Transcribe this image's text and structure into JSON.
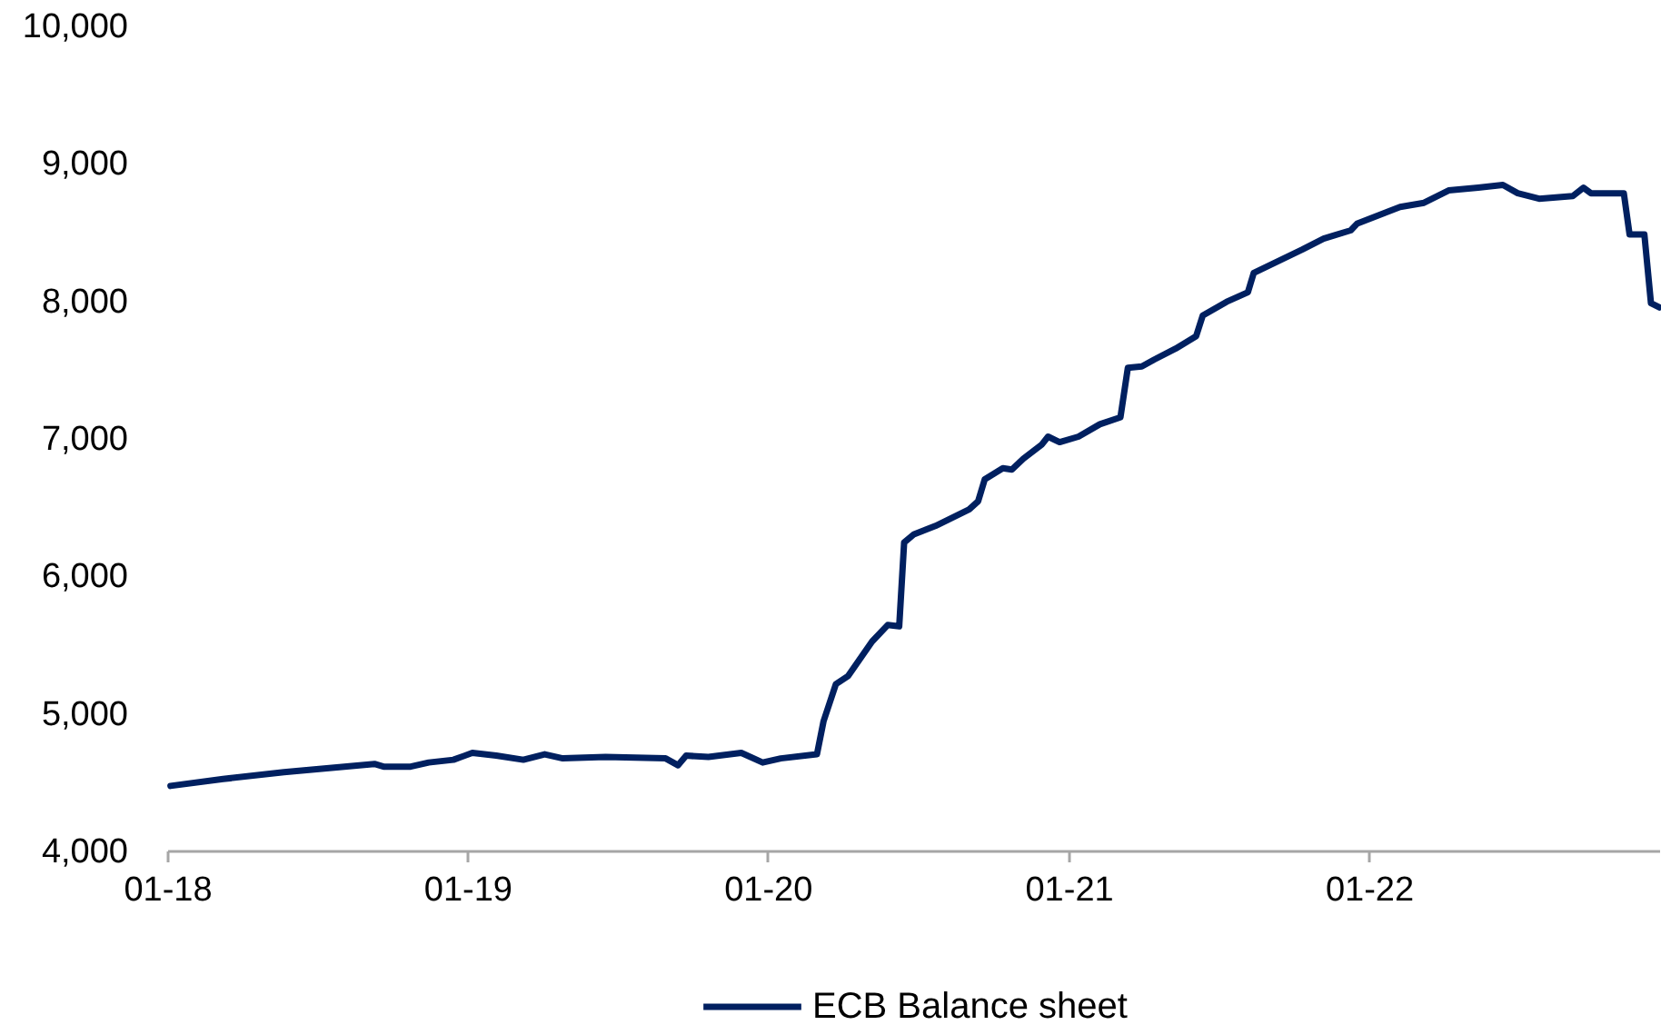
{
  "chart_data": {
    "type": "line",
    "x": [
      "2018-01-05",
      "2018-03-10",
      "2018-05-23",
      "2018-09-10",
      "2018-09-21",
      "2018-10-24",
      "2018-11-15",
      "2018-12-15",
      "2019-01-07",
      "2019-02-05",
      "2019-03-10",
      "2019-04-05",
      "2019-04-27",
      "2019-06-18",
      "2019-08-30",
      "2019-09-14",
      "2019-09-24",
      "2019-10-21",
      "2019-11-30",
      "2019-12-26",
      "2020-01-17",
      "2020-03-01",
      "2020-03-09",
      "2020-03-24",
      "2020-04-08",
      "2020-05-07",
      "2020-05-26",
      "2020-06-09",
      "2020-06-15",
      "2020-06-27",
      "2020-07-23",
      "2020-09-02",
      "2020-09-13",
      "2020-09-21",
      "2020-10-13",
      "2020-10-24",
      "2020-11-07",
      "2020-11-29",
      "2020-12-07",
      "2020-12-21",
      "2021-01-13",
      "2021-02-08",
      "2021-03-05",
      "2021-03-14",
      "2021-03-31",
      "2021-04-15",
      "2021-05-11",
      "2021-06-05",
      "2021-06-13",
      "2021-07-12",
      "2021-08-07",
      "2021-08-14",
      "2021-10-12",
      "2021-11-07",
      "2021-12-10",
      "2021-12-18",
      "2022-02-08",
      "2022-03-09",
      "2022-04-08",
      "2022-05-14",
      "2022-06-13",
      "2022-07-01",
      "2022-07-27",
      "2022-09-06",
      "2022-09-19",
      "2022-09-28",
      "2022-11-07",
      "2022-11-14",
      "2022-12-02",
      "2022-12-10",
      "2022-12-20"
    ],
    "series": [
      {
        "name": "ECB Balance sheet",
        "color": "#002060",
        "values": [
          4470,
          4520,
          4570,
          4630,
          4610,
          4610,
          4640,
          4660,
          4710,
          4690,
          4660,
          4700,
          4670,
          4680,
          4670,
          4620,
          4690,
          4680,
          4710,
          4640,
          4670,
          4700,
          4940,
          5210,
          5270,
          5520,
          5640,
          5630,
          6240,
          6300,
          6360,
          6480,
          6540,
          6700,
          6780,
          6770,
          6850,
          6950,
          7010,
          6970,
          7010,
          7100,
          7150,
          7510,
          7520,
          7570,
          7650,
          7740,
          7890,
          7990,
          8060,
          8200,
          8370,
          8450,
          8510,
          8560,
          8680,
          8710,
          8800,
          8820,
          8840,
          8780,
          8740,
          8760,
          8820,
          8780,
          8780,
          8480,
          8480,
          7980,
          7950
        ]
      }
    ],
    "xlim": [
      "2018-01-01",
      "2022-12-20"
    ],
    "xticks": [
      {
        "value": "2018-01-01",
        "label": "01-18"
      },
      {
        "value": "2019-01-01",
        "label": "01-19"
      },
      {
        "value": "2020-01-01",
        "label": "01-20"
      },
      {
        "value": "2021-01-01",
        "label": "01-21"
      },
      {
        "value": "2022-01-01",
        "label": "01-22"
      }
    ],
    "ylim": [
      4000,
      10000
    ],
    "yticks": [
      {
        "value": 4000,
        "label": "4,000"
      },
      {
        "value": 5000,
        "label": "5,000"
      },
      {
        "value": 6000,
        "label": "6,000"
      },
      {
        "value": 7000,
        "label": "7,000"
      },
      {
        "value": 8000,
        "label": "8,000"
      },
      {
        "value": 9000,
        "label": "9,000"
      },
      {
        "value": 10000,
        "label": "10,000"
      }
    ],
    "legend": "bottom",
    "line_style": "solid"
  }
}
